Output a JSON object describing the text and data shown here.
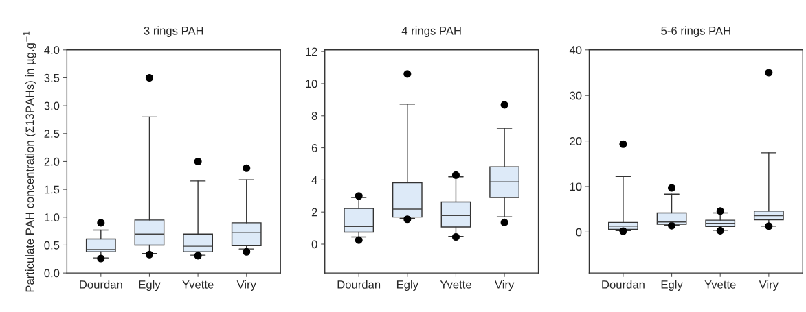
{
  "chart_data": [
    {
      "type": "box",
      "title": "3 rings PAH",
      "ylabel": "Particulate PAH concentration (Σ13PAHs) in µg.g$^{−1}$",
      "categories": [
        "Dourdan",
        "Egly",
        "Yvette",
        "Viry"
      ],
      "color": "#ddeaf8",
      "ylim": [
        0,
        4
      ],
      "yticks": [
        {
          "value": 0,
          "label": "0.0"
        },
        {
          "value": 0.5,
          "label": "0.5"
        },
        {
          "value": 1,
          "label": "1.0"
        },
        {
          "value": 1.5,
          "label": "1.5"
        },
        {
          "value": 2,
          "label": "2.0"
        },
        {
          "value": 2.5,
          "label": "2.5"
        },
        {
          "value": 3,
          "label": "3.0"
        },
        {
          "value": 3.5,
          "label": "3.5"
        },
        {
          "value": 4,
          "label": "4.0"
        }
      ],
      "grid": false,
      "boxes": [
        {
          "low": 0.27,
          "q1": 0.38,
          "median": 0.42,
          "q3": 0.61,
          "high": 0.77,
          "outliers": [
            0.9,
            0.26
          ]
        },
        {
          "low": 0.35,
          "q1": 0.5,
          "median": 0.7,
          "q3": 0.95,
          "high": 2.8,
          "outliers": [
            3.5,
            0.33
          ]
        },
        {
          "low": 0.32,
          "q1": 0.38,
          "median": 0.48,
          "q3": 0.7,
          "high": 1.65,
          "outliers": [
            2.0,
            0.31
          ]
        },
        {
          "low": 0.43,
          "q1": 0.49,
          "median": 0.73,
          "q3": 0.9,
          "high": 1.67,
          "outliers": [
            1.88,
            0.38
          ]
        }
      ]
    },
    {
      "type": "box",
      "title": "4 rings PAH",
      "categories": [
        "Dourdan",
        "Egly",
        "Yvette",
        "Viry"
      ],
      "color": "#ddeaf8",
      "ylim": [
        -1.8,
        12.1
      ],
      "yticks": [
        0,
        2,
        4,
        6,
        8,
        10,
        12
      ],
      "grid": false,
      "boxes": [
        {
          "low": 0.45,
          "q1": 0.75,
          "median": 1.1,
          "q3": 2.22,
          "high": 2.9,
          "outliers": [
            3.0,
            0.25
          ]
        },
        {
          "low": 1.6,
          "q1": 1.68,
          "median": 2.18,
          "q3": 3.82,
          "high": 8.72,
          "outliers": [
            10.6,
            1.55
          ]
        },
        {
          "low": 0.48,
          "q1": 1.07,
          "median": 1.78,
          "q3": 2.63,
          "high": 4.2,
          "outliers": [
            4.3,
            0.45
          ]
        },
        {
          "low": 1.7,
          "q1": 2.9,
          "median": 3.88,
          "q3": 4.82,
          "high": 7.22,
          "outliers": [
            8.68,
            1.35
          ]
        }
      ]
    },
    {
      "type": "box",
      "title": "5-6 rings PAH",
      "categories": [
        "Dourdan",
        "Egly",
        "Yvette",
        "Viry"
      ],
      "color": "#ddeaf8",
      "ylim": [
        -9,
        40
      ],
      "yticks": [
        0,
        10,
        20,
        30,
        40
      ],
      "grid": false,
      "boxes": [
        {
          "low": 0.3,
          "q1": 0.6,
          "median": 1.3,
          "q3": 2.1,
          "high": 12.2,
          "outliers": [
            19.3,
            0.2
          ]
        },
        {
          "low": 1.5,
          "q1": 1.7,
          "median": 2.2,
          "q3": 4.2,
          "high": 8.3,
          "outliers": [
            9.7,
            1.4
          ]
        },
        {
          "low": 0.4,
          "q1": 1.2,
          "median": 1.9,
          "q3": 2.6,
          "high": 4.2,
          "outliers": [
            4.6,
            0.3
          ]
        },
        {
          "low": 1.3,
          "q1": 2.7,
          "median": 3.6,
          "q3": 4.6,
          "high": 17.4,
          "outliers": [
            35,
            1.3
          ]
        }
      ]
    }
  ]
}
